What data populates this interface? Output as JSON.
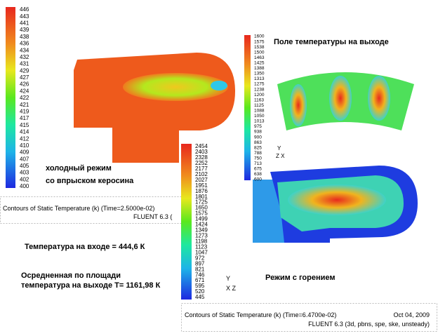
{
  "cold": {
    "legend": [
      446,
      443,
      441,
      439,
      438,
      436,
      434,
      432,
      431,
      429,
      427,
      426,
      424,
      422,
      421,
      419,
      417,
      415,
      414,
      412,
      410,
      409,
      407,
      405,
      403,
      402,
      400
    ],
    "label_line1": "холодный режим",
    "label_line2": "со впрыском керосина",
    "caption": "Contours of Static Temperature (k)  (Time=2.5000e-02)",
    "solver": "FLUENT 6.3 ("
  },
  "outlet": {
    "title": "Поле температуры  на выходе",
    "legend": [
      1600,
      1575,
      1538,
      1500,
      1463,
      1425,
      1388,
      1350,
      1313,
      1275,
      1238,
      1200,
      1163,
      1125,
      1088,
      1050,
      1013,
      975,
      938,
      900,
      863,
      825,
      788,
      750,
      713,
      675,
      638,
      600
    ],
    "axis_y": "Y",
    "axis_zx": "Z  X"
  },
  "combustion": {
    "legend": [
      2454,
      2403,
      2328,
      2252,
      2177,
      2102,
      2027,
      1951,
      1876,
      1801,
      1725,
      1650,
      1575,
      1499,
      1424,
      1349,
      1273,
      1198,
      1123,
      1047,
      972,
      897,
      821,
      746,
      671,
      595,
      520,
      445
    ],
    "label": "Режим с горением",
    "axis_y": "Y",
    "axis_xz": "X  Z",
    "caption": "Contours of Static Temperature (k)  (Time=6.4700e-02)",
    "date": "Oct 04, 2009",
    "solver": "FLUENT 6.3 (3d, pbns, spe, ske, unsteady)"
  },
  "notes": {
    "inlet": "Температура на входе = 444,6 К",
    "avg_line1": "Осредненная по площади",
    "avg_line2": "температура на выходе Т= 1161,98 К"
  }
}
